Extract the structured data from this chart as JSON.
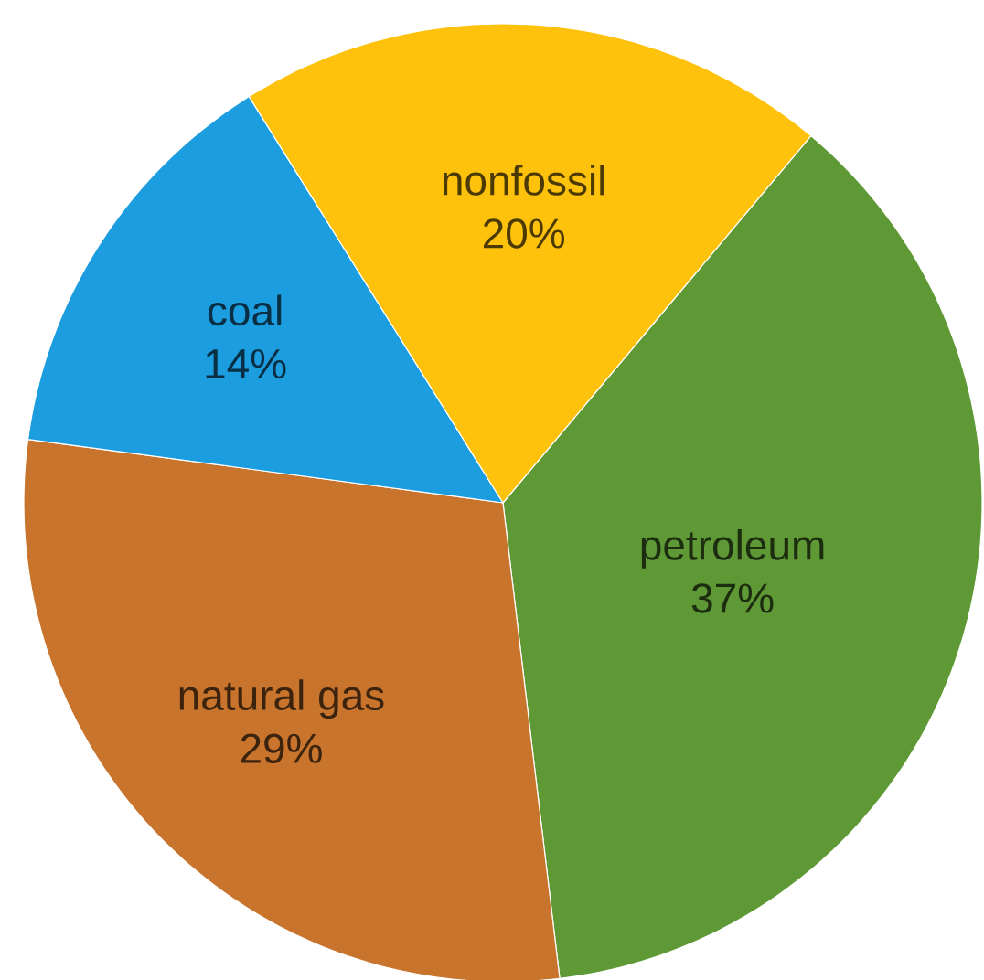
{
  "chart_data": {
    "type": "pie",
    "categories": [
      "petroleum",
      "natural gas",
      "coal",
      "nonfossil"
    ],
    "values": [
      37,
      29,
      14,
      20
    ],
    "colors": [
      "#5f9935",
      "#c8742d",
      "#1c9ddf",
      "#fec20c"
    ],
    "value_labels": [
      "37%",
      "29%",
      "14%",
      "20%"
    ]
  }
}
